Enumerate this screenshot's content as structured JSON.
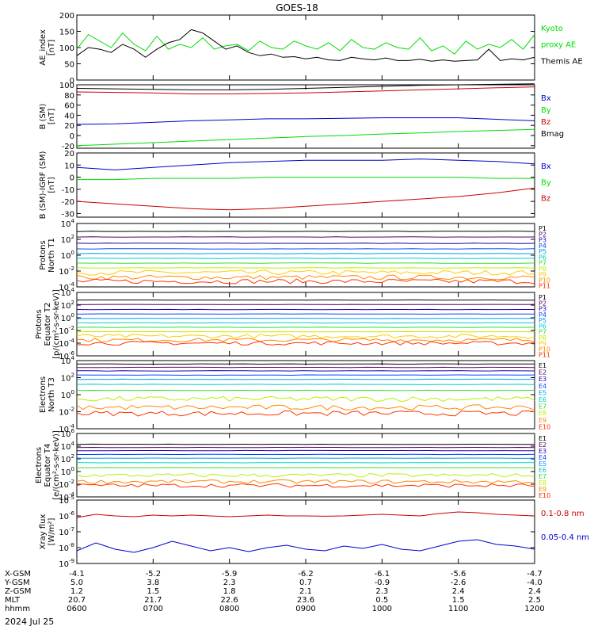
{
  "title": "GOES-18",
  "colors": {
    "black": "#000000",
    "green": "#00dd00",
    "red": "#cc0000",
    "blue": "#0000cc",
    "p": [
      "#000000",
      "#550066",
      "#2200aa",
      "#0044ff",
      "#0099ee",
      "#00cccc",
      "#33dd33",
      "#bbee00",
      "#ffcc00",
      "#ff8800",
      "#ff3300",
      "#cc0000"
    ],
    "e": [
      "#000000",
      "#550066",
      "#2200aa",
      "#0044ff",
      "#0099ee",
      "#00cccc",
      "#33dd33",
      "#bbee00",
      "#ff8800",
      "#ff3300",
      "#cc0000"
    ]
  },
  "time_axis": {
    "range": [
      600,
      1200
    ],
    "rows": [
      {
        "label": "X-GSM",
        "values": [
          "-4.1",
          "-5.2",
          "-5.9",
          "-6.2",
          "-6.1",
          "-5.6",
          "-4.7"
        ]
      },
      {
        "label": "Y-GSM",
        "values": [
          "5.0",
          "3.8",
          "2.3",
          "0.7",
          "-0.9",
          "-2.6",
          "-4.0"
        ]
      },
      {
        "label": "Z-GSM",
        "values": [
          "1.2",
          "1.5",
          "1.8",
          "2.1",
          "2.3",
          "2.4",
          "2.4"
        ]
      },
      {
        "label": "MLT",
        "values": [
          "20.7",
          "21.7",
          "22.6",
          "23.6",
          "0.5",
          "1.5",
          "2.5"
        ]
      },
      {
        "label": "hhmm",
        "values": [
          "0600",
          "0700",
          "0800",
          "0900",
          "1000",
          "1100",
          "1200"
        ]
      }
    ],
    "date": "2024 Jul 25"
  },
  "chart_data": [
    {
      "type": "line",
      "ylabel": [
        "AE_index",
        "[nT]"
      ],
      "ylim": [
        0,
        200
      ],
      "yticks": [
        "0",
        "50",
        "100",
        "150",
        "200"
      ],
      "series": [
        {
          "name": "Kyoto proxy AE",
          "color": "green",
          "x": [
            600,
            615,
            630,
            645,
            660,
            675,
            690,
            705,
            720,
            735,
            750,
            765,
            780,
            795,
            810,
            825,
            840,
            855,
            870,
            885,
            900,
            915,
            930,
            945,
            960,
            975,
            990,
            1005,
            1020,
            1035,
            1050,
            1065,
            1080,
            1095,
            1110,
            1125,
            1140,
            1155,
            1170,
            1185,
            1200
          ],
          "values": [
            95,
            140,
            120,
            100,
            145,
            110,
            90,
            135,
            95,
            110,
            100,
            130,
            95,
            105,
            110,
            90,
            120,
            100,
            95,
            120,
            105,
            95,
            115,
            90,
            125,
            100,
            95,
            115,
            100,
            95,
            130,
            90,
            105,
            80,
            120,
            95,
            110,
            100,
            125,
            95,
            140
          ]
        },
        {
          "name": "Themis AE",
          "color": "black",
          "x": [
            600,
            615,
            630,
            645,
            660,
            675,
            690,
            705,
            720,
            735,
            750,
            765,
            780,
            795,
            810,
            825,
            840,
            855,
            870,
            885,
            900,
            915,
            930,
            945,
            960,
            975,
            990,
            1005,
            1020,
            1035,
            1050,
            1065,
            1080,
            1095,
            1110,
            1125,
            1140,
            1155,
            1170,
            1185,
            1200
          ],
          "values": [
            75,
            100,
            95,
            85,
            110,
            95,
            70,
            95,
            115,
            125,
            155,
            145,
            120,
            95,
            105,
            85,
            75,
            80,
            70,
            72,
            65,
            70,
            62,
            60,
            70,
            65,
            62,
            68,
            60,
            60,
            64,
            58,
            62,
            58,
            60,
            62,
            95,
            60,
            65,
            62,
            70
          ]
        }
      ],
      "legend_labels": [
        {
          "text": "Kyoto",
          "color": "green"
        },
        {
          "text": "proxy AE",
          "color": "green"
        },
        {
          "text": "Themis AE",
          "color": "black"
        }
      ]
    },
    {
      "type": "line",
      "ylabel": [
        "B (SM)",
        "[nT]"
      ],
      "ylim": [
        -25,
        100
      ],
      "yticks": [
        "100",
        "80",
        "60",
        "40",
        "20",
        "0",
        "-20"
      ],
      "series": [
        {
          "name": "Bz",
          "color": "red",
          "x": [
            600,
            650,
            700,
            750,
            800,
            850,
            900,
            950,
            1000,
            1050,
            1100,
            1150,
            1200
          ],
          "values": [
            86,
            85,
            84,
            82,
            82,
            83,
            84,
            86,
            88,
            90,
            92,
            94,
            96
          ]
        },
        {
          "name": "Bx",
          "color": "blue",
          "x": [
            600,
            650,
            700,
            750,
            800,
            850,
            900,
            950,
            1000,
            1050,
            1100,
            1150,
            1200
          ],
          "values": [
            22,
            23,
            26,
            29,
            31,
            33,
            33,
            34,
            35,
            35,
            35,
            32,
            29
          ]
        },
        {
          "name": "By",
          "color": "green",
          "x": [
            600,
            650,
            700,
            750,
            800,
            850,
            900,
            950,
            1000,
            1050,
            1100,
            1150,
            1200
          ],
          "values": [
            -20,
            -17,
            -14,
            -11,
            -8,
            -5,
            -2,
            0,
            3,
            5,
            8,
            10,
            12
          ]
        },
        {
          "name": "Bmag",
          "color": "black",
          "x": [
            600,
            650,
            700,
            750,
            800,
            850,
            900,
            950,
            1000,
            1050,
            1100,
            1150,
            1200
          ],
          "values": [
            93,
            92,
            91,
            90,
            90,
            91,
            93,
            95,
            97,
            99,
            100,
            101,
            102
          ]
        }
      ],
      "legend_labels": [
        {
          "text": "Bx",
          "color": "blue"
        },
        {
          "text": "By",
          "color": "green"
        },
        {
          "text": "Bz",
          "color": "red"
        },
        {
          "text": "Bmag",
          "color": "black"
        }
      ]
    },
    {
      "type": "line",
      "ylabel": [
        "B (SM)-IGRF (SM)",
        "[nT]"
      ],
      "ylim": [
        -33,
        20
      ],
      "yticks": [
        "20",
        "10",
        "0",
        "-10",
        "-20",
        "-30"
      ],
      "series": [
        {
          "name": "Bx",
          "color": "blue",
          "x": [
            600,
            650,
            700,
            750,
            800,
            850,
            900,
            950,
            1000,
            1050,
            1100,
            1150,
            1200
          ],
          "values": [
            8,
            6,
            8,
            10,
            12,
            13,
            14,
            14,
            14,
            15,
            14,
            13,
            11
          ]
        },
        {
          "name": "By",
          "color": "green",
          "x": [
            600,
            650,
            700,
            750,
            800,
            850,
            900,
            950,
            1000,
            1050,
            1100,
            1150,
            1200
          ],
          "values": [
            -2,
            -2,
            -1,
            -1,
            -1,
            0,
            0,
            0,
            0,
            0,
            0,
            -1,
            -1
          ]
        },
        {
          "name": "Bz",
          "color": "red",
          "x": [
            600,
            650,
            700,
            750,
            800,
            850,
            900,
            950,
            1000,
            1050,
            1100,
            1150,
            1200
          ],
          "values": [
            -20,
            -22,
            -24,
            -26,
            -27,
            -26,
            -24,
            -22,
            -20,
            -18,
            -16,
            -13,
            -9
          ]
        }
      ],
      "legend_labels": [
        {
          "text": "Bx",
          "color": "blue"
        },
        {
          "text": "By",
          "color": "green"
        },
        {
          "text": "Bz",
          "color": "red"
        }
      ]
    },
    {
      "type": "line",
      "log": true,
      "ylabel": [
        "Protons",
        "North T1"
      ],
      "ylim": [
        -4,
        4
      ],
      "yticks": [
        "10^4",
        "10^2",
        "10^0",
        "10^-2",
        "10^-4"
      ],
      "channels": [
        {
          "name": "P1",
          "level": 3.0
        },
        {
          "name": "P2",
          "level": 2.3
        },
        {
          "name": "P3",
          "level": 1.5
        },
        {
          "name": "P4",
          "level": 0.8
        },
        {
          "name": "P5",
          "level": 0.2
        },
        {
          "name": "P6",
          "level": -0.4
        },
        {
          "name": "P7",
          "level": -1.0
        },
        {
          "name": "P8",
          "level": -1.6
        },
        {
          "name": "P9",
          "level": -2.2
        },
        {
          "name": "P10",
          "level": -2.8
        },
        {
          "name": "P11",
          "level": -3.3
        }
      ]
    },
    {
      "type": "line",
      "log": true,
      "ylabel": [
        "Protons",
        "Equator T2",
        "[p/(cm²-s-sr-keV)]"
      ],
      "ylim": [
        -6,
        4
      ],
      "yticks": [
        "10^4",
        "10^2",
        "10^0",
        "10^-2",
        "10^-4",
        "10^-6"
      ],
      "channels": [
        {
          "name": "P1",
          "level": 2.8
        },
        {
          "name": "P2",
          "level": 2.1
        },
        {
          "name": "P3",
          "level": 1.3
        },
        {
          "name": "P4",
          "level": 0.6
        },
        {
          "name": "P5",
          "level": -0.1
        },
        {
          "name": "P6",
          "level": -0.8
        },
        {
          "name": "P7",
          "level": -1.5
        },
        {
          "name": "P8",
          "level": -2.2
        },
        {
          "name": "P9",
          "level": -2.9
        },
        {
          "name": "P10",
          "level": -3.5
        },
        {
          "name": "P11",
          "level": -4.0
        }
      ]
    },
    {
      "type": "line",
      "log": true,
      "ylabel": [
        "Electrons",
        "North T3"
      ],
      "ylim": [
        -4,
        4
      ],
      "yticks": [
        "10^4",
        "10^2",
        "10^0",
        "10^-2",
        "10^-4"
      ],
      "channels": [
        {
          "name": "E1",
          "level": 3.6
        },
        {
          "name": "E2",
          "level": 3.2
        },
        {
          "name": "E3",
          "level": 2.8
        },
        {
          "name": "E4",
          "level": 2.3
        },
        {
          "name": "E5",
          "level": 1.8
        },
        {
          "name": "E6",
          "level": 1.2
        },
        {
          "name": "E7",
          "level": 0.5
        },
        {
          "name": "E8",
          "level": -0.5
        },
        {
          "name": "E9",
          "level": -1.5
        },
        {
          "name": "E10",
          "level": -2.2
        }
      ]
    },
    {
      "type": "line",
      "log": true,
      "ylabel": [
        "Electrons",
        "Equator T4",
        "[e/(cm²-s-sr-keV)]"
      ],
      "ylim": [
        -4,
        6
      ],
      "yticks": [
        "10^6",
        "10^4",
        "10^2",
        "10^0",
        "10^-2",
        "10^-4"
      ],
      "channels": [
        {
          "name": "E1",
          "level": 4.3
        },
        {
          "name": "E2",
          "level": 3.8
        },
        {
          "name": "E3",
          "level": 3.3
        },
        {
          "name": "E4",
          "level": 2.7
        },
        {
          "name": "E5",
          "level": 2.1
        },
        {
          "name": "E6",
          "level": 1.4
        },
        {
          "name": "E7",
          "level": 0.6
        },
        {
          "name": "E8",
          "level": -0.6
        },
        {
          "name": "E9",
          "level": -1.6
        },
        {
          "name": "E10",
          "level": -2.2
        }
      ]
    },
    {
      "type": "line",
      "log": true,
      "ylabel": [
        "Xray flux",
        "[W/m²]"
      ],
      "ylim": [
        -9,
        -5
      ],
      "yticks": [
        "10^-5",
        "10^-6",
        "10^-7",
        "10^-8",
        "10^-9"
      ],
      "series": [
        {
          "name": "0.1-0.8 nm",
          "color": "red",
          "x": [
            600,
            625,
            650,
            675,
            700,
            725,
            750,
            775,
            800,
            825,
            850,
            875,
            900,
            925,
            950,
            975,
            1000,
            1025,
            1050,
            1075,
            1100,
            1125,
            1150,
            1175,
            1200
          ],
          "values": [
            -6.1,
            -5.9,
            -6.0,
            -6.05,
            -5.95,
            -6.0,
            -5.95,
            -6.0,
            -6.05,
            -6.0,
            -5.95,
            -6.0,
            -6.0,
            -6.02,
            -6.0,
            -5.95,
            -5.9,
            -5.95,
            -6.0,
            -5.85,
            -5.75,
            -5.8,
            -5.9,
            -5.95,
            -6.0
          ]
        },
        {
          "name": "0.05-0.4 nm",
          "color": "blue",
          "x": [
            600,
            625,
            650,
            675,
            700,
            725,
            750,
            775,
            800,
            825,
            850,
            875,
            900,
            925,
            950,
            975,
            1000,
            1025,
            1050,
            1075,
            1100,
            1125,
            1150,
            1175,
            1200
          ],
          "values": [
            -8.2,
            -7.7,
            -8.1,
            -8.3,
            -8.0,
            -7.6,
            -7.9,
            -8.2,
            -8.0,
            -8.25,
            -8.0,
            -7.85,
            -8.1,
            -8.2,
            -7.9,
            -8.05,
            -7.8,
            -8.1,
            -8.2,
            -7.9,
            -7.6,
            -7.5,
            -7.8,
            -7.9,
            -8.1
          ]
        }
      ],
      "legend_labels": [
        {
          "text": "0.1-0.8 nm",
          "color": "red"
        },
        {
          "text": "0.05-0.4 nm",
          "color": "blue"
        }
      ]
    }
  ]
}
